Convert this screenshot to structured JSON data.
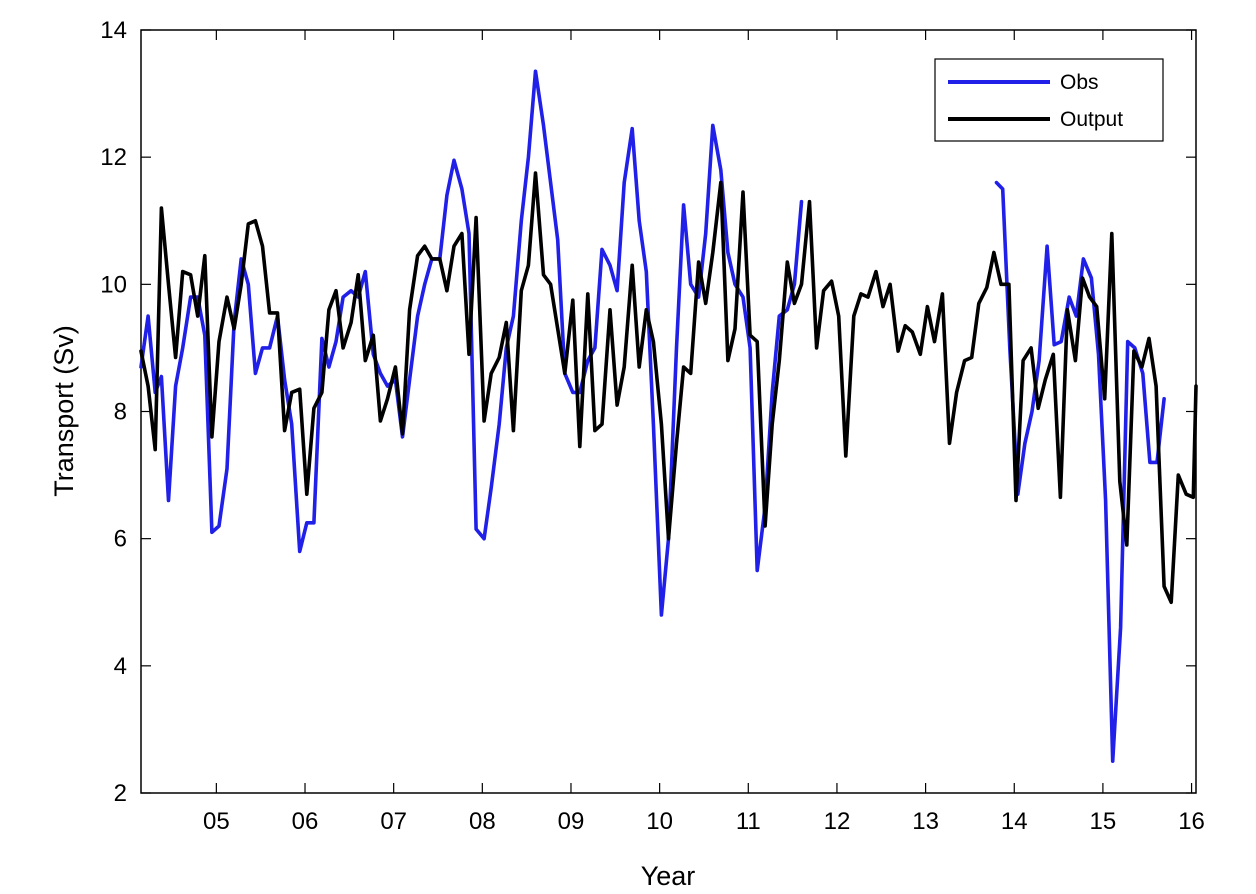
{
  "chart_data": {
    "type": "line",
    "title": "",
    "xlabel": "Year",
    "ylabel": "Transport (Sv)",
    "xlim": [
      4.15,
      16.05
    ],
    "ylim": [
      2,
      14
    ],
    "x_ticks": [
      {
        "value": 5,
        "label": "05"
      },
      {
        "value": 6,
        "label": "06"
      },
      {
        "value": 7,
        "label": "07"
      },
      {
        "value": 8,
        "label": "08"
      },
      {
        "value": 9,
        "label": "09"
      },
      {
        "value": 10,
        "label": "10"
      },
      {
        "value": 11,
        "label": "11"
      },
      {
        "value": 12,
        "label": "12"
      },
      {
        "value": 13,
        "label": "13"
      },
      {
        "value": 14,
        "label": "14"
      },
      {
        "value": 15,
        "label": "15"
      },
      {
        "value": 16,
        "label": "16"
      }
    ],
    "y_ticks": [
      2,
      4,
      6,
      8,
      10,
      12,
      14
    ],
    "grid": false,
    "legend_position": "top-right",
    "series": [
      {
        "name": "Obs",
        "color": "#2020e8",
        "segments": [
          [
            [
              4.15,
              8.7
            ],
            [
              4.23,
              9.5
            ],
            [
              4.31,
              8.3
            ],
            [
              4.38,
              8.55
            ],
            [
              4.46,
              6.6
            ],
            [
              4.54,
              8.4
            ],
            [
              4.62,
              9.0
            ],
            [
              4.71,
              9.8
            ],
            [
              4.79,
              9.8
            ],
            [
              4.87,
              9.2
            ],
            [
              4.95,
              6.1
            ],
            [
              5.03,
              6.2
            ],
            [
              5.12,
              7.1
            ],
            [
              5.2,
              9.4
            ],
            [
              5.28,
              10.4
            ],
            [
              5.36,
              10.0
            ],
            [
              5.44,
              8.6
            ],
            [
              5.52,
              9.0
            ],
            [
              5.6,
              9.0
            ],
            [
              5.69,
              9.5
            ],
            [
              5.77,
              8.5
            ],
            [
              5.85,
              7.8
            ],
            [
              5.94,
              5.8
            ],
            [
              6.02,
              6.25
            ],
            [
              6.1,
              6.25
            ],
            [
              6.19,
              9.15
            ],
            [
              6.27,
              8.7
            ],
            [
              6.35,
              9.1
            ],
            [
              6.43,
              9.8
            ],
            [
              6.52,
              9.9
            ],
            [
              6.6,
              9.8
            ],
            [
              6.68,
              10.2
            ],
            [
              6.77,
              8.9
            ],
            [
              6.85,
              8.6
            ],
            [
              6.93,
              8.4
            ],
            [
              7.02,
              8.5
            ],
            [
              7.1,
              7.6
            ],
            [
              7.18,
              8.5
            ],
            [
              7.27,
              9.5
            ],
            [
              7.35,
              10.0
            ],
            [
              7.43,
              10.4
            ],
            [
              7.52,
              10.4
            ],
            [
              7.6,
              11.4
            ],
            [
              7.68,
              11.95
            ],
            [
              7.77,
              11.5
            ],
            [
              7.85,
              10.8
            ],
            [
              7.93,
              6.15
            ],
            [
              8.02,
              6.0
            ],
            [
              8.1,
              6.8
            ],
            [
              8.19,
              7.8
            ],
            [
              8.27,
              9.0
            ],
            [
              8.35,
              9.5
            ],
            [
              8.44,
              11.0
            ],
            [
              8.52,
              12.0
            ],
            [
              8.6,
              13.35
            ],
            [
              8.69,
              12.5
            ],
            [
              8.77,
              11.6
            ],
            [
              8.85,
              10.7
            ],
            [
              8.93,
              8.6
            ],
            [
              9.02,
              8.3
            ],
            [
              9.1,
              8.3
            ],
            [
              9.19,
              8.8
            ],
            [
              9.27,
              9.0
            ],
            [
              9.35,
              10.55
            ],
            [
              9.44,
              10.3
            ],
            [
              9.52,
              9.9
            ],
            [
              9.6,
              11.6
            ],
            [
              9.69,
              12.45
            ],
            [
              9.77,
              11.0
            ],
            [
              9.85,
              10.2
            ],
            [
              9.93,
              7.8
            ],
            [
              10.02,
              4.8
            ],
            [
              10.1,
              6.0
            ],
            [
              10.19,
              9.0
            ],
            [
              10.27,
              11.25
            ],
            [
              10.35,
              10.0
            ],
            [
              10.44,
              9.8
            ],
            [
              10.52,
              10.8
            ],
            [
              10.6,
              12.5
            ],
            [
              10.69,
              11.8
            ],
            [
              10.77,
              10.5
            ],
            [
              10.85,
              10.0
            ],
            [
              10.94,
              9.8
            ],
            [
              11.02,
              9.0
            ],
            [
              11.1,
              5.5
            ],
            [
              11.19,
              6.5
            ],
            [
              11.27,
              8.3
            ],
            [
              11.35,
              9.5
            ],
            [
              11.44,
              9.6
            ],
            [
              11.52,
              10.0
            ],
            [
              11.6,
              11.3
            ]
          ],
          [
            [
              13.8,
              11.6
            ],
            [
              13.87,
              11.5
            ],
            [
              13.95,
              9.0
            ],
            [
              14.04,
              6.7
            ],
            [
              14.12,
              7.5
            ],
            [
              14.2,
              8.0
            ],
            [
              14.28,
              8.8
            ],
            [
              14.37,
              10.6
            ],
            [
              14.45,
              9.05
            ],
            [
              14.53,
              9.1
            ],
            [
              14.62,
              9.8
            ],
            [
              14.7,
              9.5
            ],
            [
              14.78,
              10.4
            ],
            [
              14.87,
              10.1
            ],
            [
              14.95,
              8.9
            ],
            [
              15.03,
              6.6
            ],
            [
              15.11,
              2.5
            ],
            [
              15.2,
              4.6
            ],
            [
              15.28,
              9.1
            ],
            [
              15.36,
              9.0
            ],
            [
              15.45,
              8.6
            ],
            [
              15.53,
              7.2
            ],
            [
              15.61,
              7.2
            ],
            [
              15.69,
              8.2
            ]
          ]
        ]
      },
      {
        "name": "Output",
        "color": "#000000",
        "segments": [
          [
            [
              4.15,
              8.95
            ],
            [
              4.23,
              8.4
            ],
            [
              4.31,
              7.4
            ],
            [
              4.38,
              11.2
            ],
            [
              4.46,
              10.0
            ],
            [
              4.54,
              8.85
            ],
            [
              4.62,
              10.2
            ],
            [
              4.71,
              10.15
            ],
            [
              4.79,
              9.5
            ],
            [
              4.87,
              10.45
            ],
            [
              4.95,
              7.6
            ],
            [
              5.03,
              9.1
            ],
            [
              5.12,
              9.8
            ],
            [
              5.2,
              9.3
            ],
            [
              5.28,
              10.0
            ],
            [
              5.36,
              10.95
            ],
            [
              5.44,
              11.0
            ],
            [
              5.52,
              10.6
            ],
            [
              5.6,
              9.55
            ],
            [
              5.69,
              9.55
            ],
            [
              5.77,
              7.7
            ],
            [
              5.85,
              8.3
            ],
            [
              5.94,
              8.35
            ],
            [
              6.02,
              6.7
            ],
            [
              6.1,
              8.05
            ],
            [
              6.19,
              8.3
            ],
            [
              6.27,
              9.6
            ],
            [
              6.35,
              9.9
            ],
            [
              6.43,
              9.0
            ],
            [
              6.52,
              9.4
            ],
            [
              6.6,
              10.15
            ],
            [
              6.68,
              8.8
            ],
            [
              6.77,
              9.2
            ],
            [
              6.85,
              7.85
            ],
            [
              6.93,
              8.2
            ],
            [
              7.02,
              8.7
            ],
            [
              7.1,
              7.65
            ],
            [
              7.18,
              9.6
            ],
            [
              7.27,
              10.45
            ],
            [
              7.35,
              10.6
            ],
            [
              7.43,
              10.4
            ],
            [
              7.52,
              10.4
            ],
            [
              7.6,
              9.9
            ],
            [
              7.68,
              10.6
            ],
            [
              7.77,
              10.8
            ],
            [
              7.85,
              8.9
            ],
            [
              7.93,
              11.05
            ],
            [
              8.02,
              7.85
            ],
            [
              8.1,
              8.6
            ],
            [
              8.19,
              8.85
            ],
            [
              8.27,
              9.4
            ],
            [
              8.35,
              7.7
            ],
            [
              8.44,
              9.9
            ],
            [
              8.52,
              10.3
            ],
            [
              8.6,
              11.75
            ],
            [
              8.69,
              10.15
            ],
            [
              8.77,
              10.0
            ],
            [
              8.85,
              9.3
            ],
            [
              8.93,
              8.6
            ],
            [
              9.02,
              9.75
            ],
            [
              9.1,
              7.45
            ],
            [
              9.19,
              9.85
            ],
            [
              9.27,
              7.7
            ],
            [
              9.35,
              7.8
            ],
            [
              9.44,
              9.6
            ],
            [
              9.52,
              8.1
            ],
            [
              9.6,
              8.7
            ],
            [
              9.69,
              10.3
            ],
            [
              9.77,
              8.7
            ],
            [
              9.85,
              9.6
            ],
            [
              9.93,
              9.1
            ],
            [
              10.02,
              7.8
            ],
            [
              10.1,
              6.0
            ],
            [
              10.19,
              7.5
            ],
            [
              10.27,
              8.7
            ],
            [
              10.35,
              8.6
            ],
            [
              10.44,
              10.35
            ],
            [
              10.52,
              9.7
            ],
            [
              10.6,
              10.5
            ],
            [
              10.69,
              11.6
            ],
            [
              10.77,
              8.8
            ],
            [
              10.85,
              9.3
            ],
            [
              10.94,
              11.45
            ],
            [
              11.02,
              9.2
            ],
            [
              11.1,
              9.1
            ],
            [
              11.19,
              6.2
            ],
            [
              11.27,
              7.8
            ],
            [
              11.35,
              8.8
            ],
            [
              11.44,
              10.35
            ],
            [
              11.52,
              9.7
            ],
            [
              11.6,
              10.0
            ],
            [
              11.69,
              11.3
            ],
            [
              11.77,
              9.0
            ],
            [
              11.85,
              9.9
            ],
            [
              11.94,
              10.05
            ],
            [
              12.02,
              9.5
            ],
            [
              12.1,
              7.3
            ],
            [
              12.19,
              9.5
            ],
            [
              12.27,
              9.85
            ],
            [
              12.35,
              9.8
            ],
            [
              12.44,
              10.2
            ],
            [
              12.52,
              9.65
            ],
            [
              12.6,
              10.0
            ],
            [
              12.69,
              8.95
            ],
            [
              12.77,
              9.35
            ],
            [
              12.85,
              9.25
            ],
            [
              12.94,
              8.9
            ],
            [
              13.02,
              9.65
            ],
            [
              13.1,
              9.1
            ],
            [
              13.19,
              9.85
            ],
            [
              13.27,
              7.5
            ],
            [
              13.35,
              8.3
            ],
            [
              13.44,
              8.8
            ],
            [
              13.52,
              8.85
            ],
            [
              13.6,
              9.7
            ],
            [
              13.69,
              9.95
            ],
            [
              13.77,
              10.5
            ],
            [
              13.85,
              10.0
            ],
            [
              13.94,
              10.0
            ],
            [
              14.02,
              6.6
            ],
            [
              14.1,
              8.8
            ],
            [
              14.19,
              9.0
            ],
            [
              14.27,
              8.05
            ],
            [
              14.35,
              8.5
            ],
            [
              14.44,
              8.9
            ],
            [
              14.52,
              6.65
            ],
            [
              14.6,
              9.6
            ],
            [
              14.69,
              8.8
            ],
            [
              14.77,
              10.1
            ],
            [
              14.85,
              9.8
            ],
            [
              14.93,
              9.65
            ],
            [
              15.02,
              8.2
            ],
            [
              15.1,
              10.8
            ],
            [
              15.19,
              6.9
            ],
            [
              15.27,
              5.9
            ],
            [
              15.35,
              8.95
            ],
            [
              15.44,
              8.7
            ],
            [
              15.52,
              9.15
            ],
            [
              15.6,
              8.4
            ],
            [
              15.69,
              5.25
            ],
            [
              15.77,
              5.0
            ],
            [
              15.85,
              7.0
            ],
            [
              15.94,
              6.7
            ],
            [
              16.02,
              6.65
            ],
            [
              16.05,
              8.4
            ]
          ]
        ]
      }
    ]
  }
}
